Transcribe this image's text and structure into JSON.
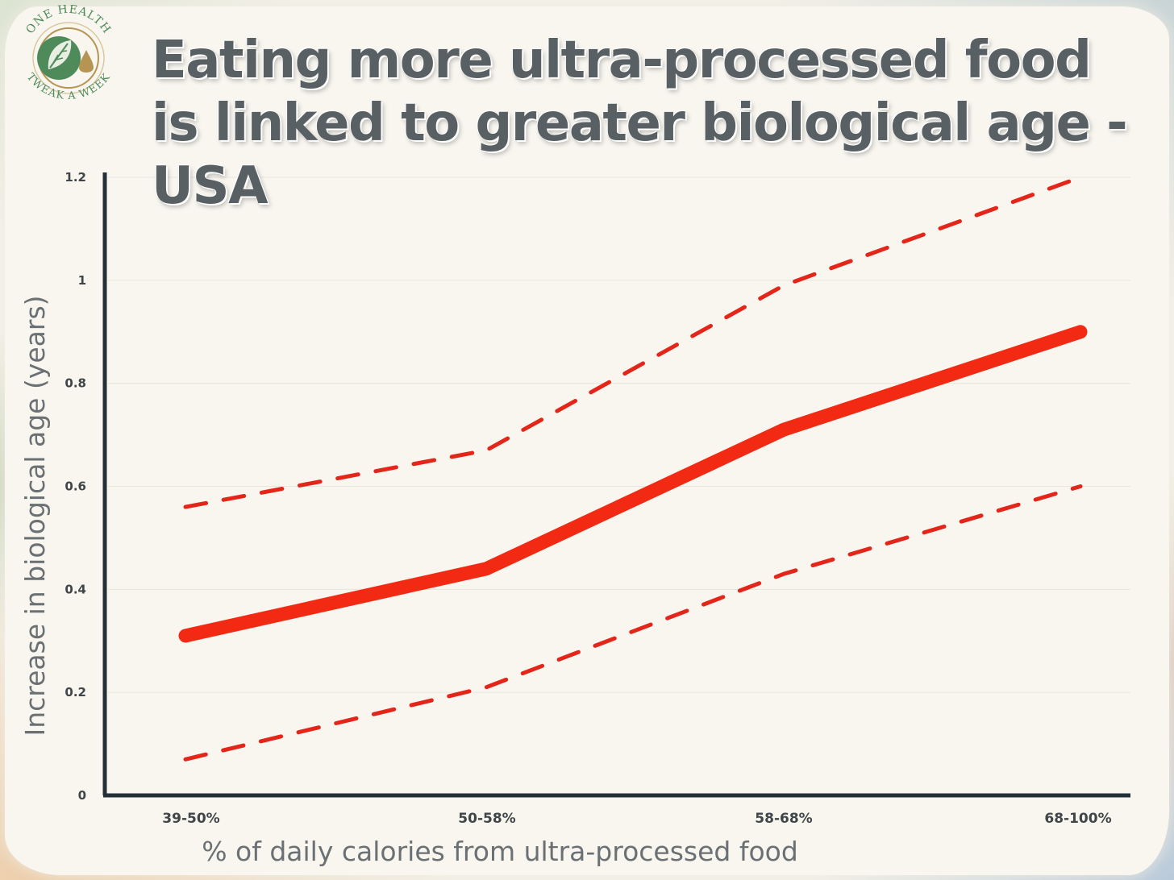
{
  "brand": {
    "logo_text_top": "ONE HEALTH",
    "logo_text_bottom": "TWEAK A WEEK",
    "colors": {
      "green": "#4f8a5b",
      "gold": "#b69552"
    }
  },
  "chart_data": {
    "type": "line",
    "title": "Eating more ultra-processed food is linked to greater biological age - USA",
    "xlabel": "% of daily calories from ultra-processed food",
    "ylabel": "Increase in biological age (years)",
    "categories": [
      "39-50%",
      "50-58%",
      "58-68%",
      "68-100%"
    ],
    "ylim": [
      0,
      1.2
    ],
    "yticks": [
      "0",
      "0.2",
      "0.4",
      "0.6",
      "0.8",
      "1",
      "1.2"
    ],
    "grid": false,
    "legend": "none",
    "series": [
      {
        "role": "estimate",
        "values": [
          0.31,
          0.44,
          0.71,
          0.9
        ],
        "color": "#f22a14",
        "style": "solid"
      },
      {
        "role": "upper",
        "values": [
          0.56,
          0.67,
          0.99,
          1.2
        ],
        "color": "#e4261a",
        "style": "dashed"
      },
      {
        "role": "lower",
        "values": [
          0.07,
          0.21,
          0.43,
          0.6
        ],
        "color": "#e4261a",
        "style": "dashed"
      }
    ],
    "axis_color": "#243038"
  }
}
